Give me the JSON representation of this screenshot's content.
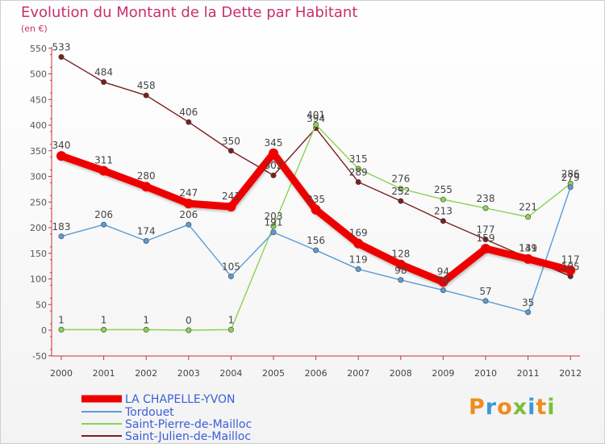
{
  "page": {
    "title": "Evolution du Montant de la Dette par Habitant",
    "unit": "(en €)",
    "logo": "Proxiti"
  },
  "chart_data": {
    "type": "line",
    "title": "Evolution du Montant de la Dette par Habitant",
    "subtitle": "(en €)",
    "x": [
      "2000",
      "2001",
      "2002",
      "2003",
      "2004",
      "2005",
      "2006",
      "2007",
      "2008",
      "2009",
      "2010",
      "2011",
      "2012"
    ],
    "ylim": [
      -50,
      550
    ],
    "yticks": [
      -50,
      0,
      50,
      100,
      150,
      200,
      250,
      300,
      350,
      400,
      450,
      500,
      550
    ],
    "grid": false,
    "legend_position": "bottom-left",
    "series": [
      {
        "name": "LA CHAPELLE-YVON",
        "color": "#ee0000",
        "values": [
          340,
          311,
          280,
          247,
          241,
          345,
          235,
          169,
          128,
          94,
          159,
          139,
          117
        ],
        "labels": [
          "340",
          "311",
          "280",
          "247",
          "241",
          "345",
          "235",
          "169",
          "128",
          "94",
          "159",
          "139",
          "117"
        ]
      },
      {
        "name": "Tordouet",
        "color": "#5b9bd5",
        "values": [
          183,
          206,
          174,
          206,
          105,
          191,
          156,
          119,
          98,
          78,
          57,
          35,
          279
        ],
        "labels": [
          "183",
          "206",
          "174",
          "206",
          "105",
          "191",
          "156",
          "119",
          "98",
          "78",
          "57",
          "35",
          "279"
        ]
      },
      {
        "name": "Saint-Pierre-de-Mailloc",
        "color": "#8ad253",
        "values": [
          1,
          1,
          1,
          0,
          1,
          203,
          401,
          315,
          276,
          255,
          238,
          221,
          286
        ],
        "labels": [
          "1",
          "1",
          "1",
          "0",
          "1",
          "203",
          "401",
          "315",
          "276",
          "255",
          "238",
          "221",
          "286"
        ]
      },
      {
        "name": "Saint-Julien-de-Mailloc",
        "color": "#7a1f1f",
        "values": [
          533,
          484,
          458,
          406,
          350,
          302,
          394,
          289,
          252,
          213,
          177,
          141,
          105
        ],
        "labels": [
          "533",
          "484",
          "458",
          "406",
          "350",
          "302",
          "394",
          "289",
          "252",
          "213",
          "177",
          "141",
          "105"
        ]
      }
    ]
  }
}
